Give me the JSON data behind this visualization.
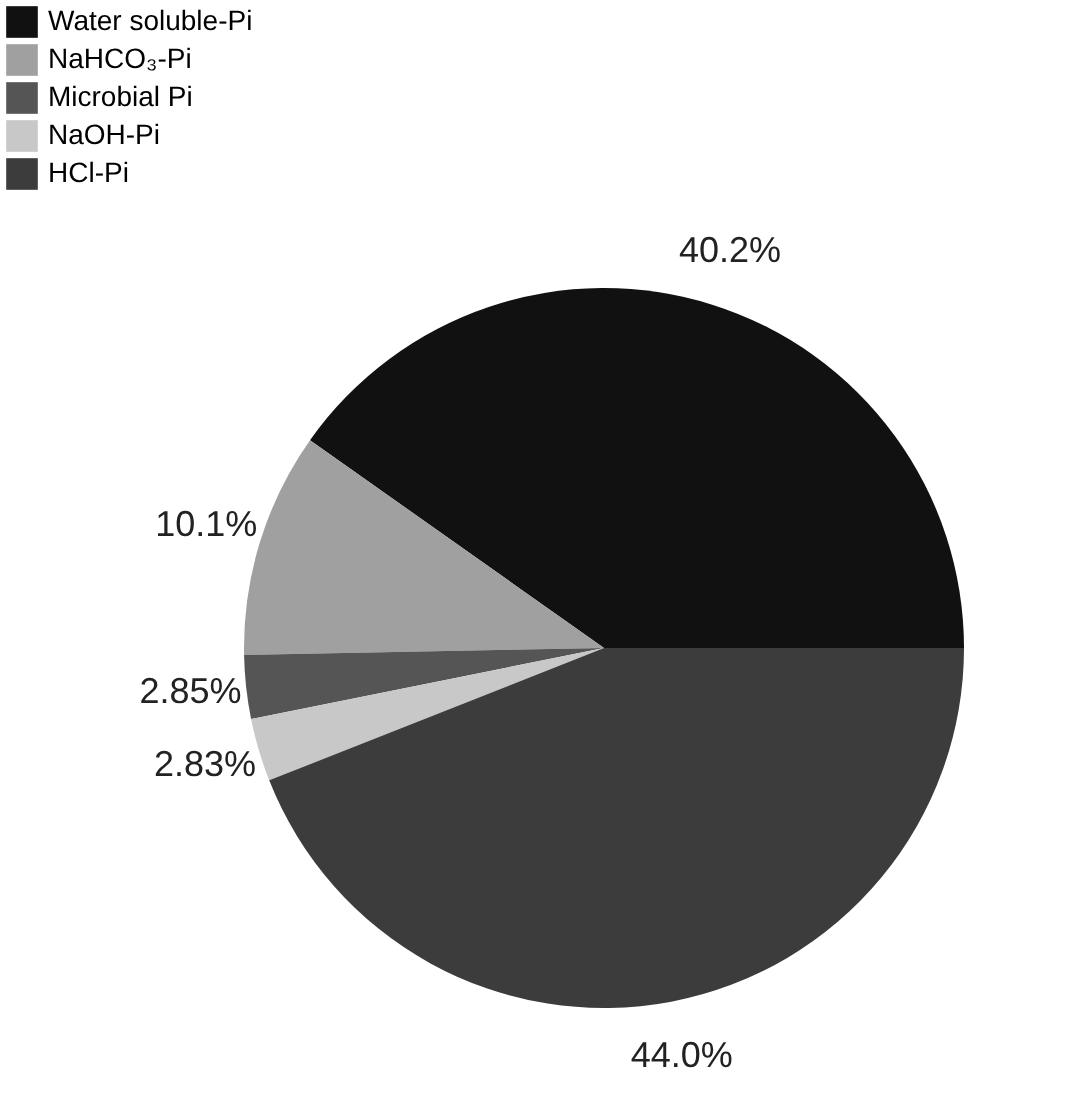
{
  "chart_data": {
    "type": "pie",
    "categories": [
      "Water soluble-Pi",
      "NaHCO₃-Pi",
      "Microbial Pi",
      "NaOH-Pi",
      "HCl-Pi"
    ],
    "values": [
      40.2,
      10.1,
      2.85,
      2.83,
      44.0
    ],
    "value_labels": [
      "40.2%",
      "10.1%",
      "2.85%",
      "2.83%",
      "44.0%"
    ],
    "colors": [
      "#111111",
      "#a0a0a0",
      "#555555",
      "#c8c8c8",
      "#3c3c3c"
    ],
    "legend": "top left"
  }
}
